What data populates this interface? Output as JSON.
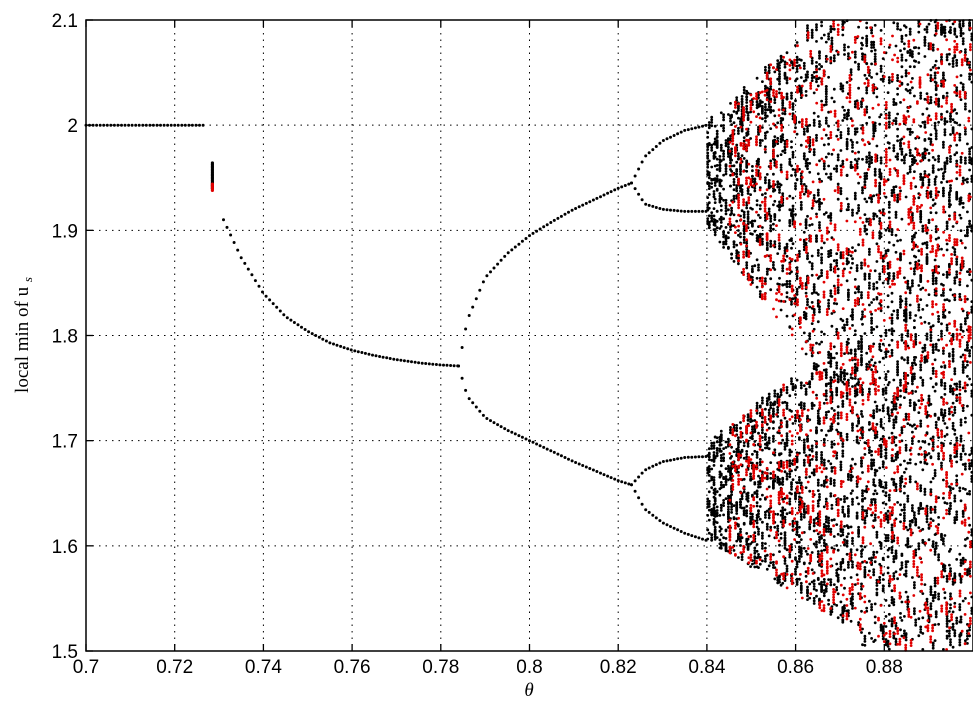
{
  "chart_data": {
    "type": "scatter",
    "title": "",
    "xlabel": "θ",
    "ylabel": "local min of u",
    "ylabel_subscript": "s",
    "xlim": [
      0.7,
      0.9
    ],
    "ylim": [
      1.5,
      2.1
    ],
    "x_ticks": [
      "0.7",
      "0.72",
      "0.74",
      "0.76",
      "0.78",
      "0.8",
      "0.82",
      "0.84",
      "0.86",
      "0.88"
    ],
    "y_ticks": [
      "1.5",
      "1.6",
      "1.7",
      "1.8",
      "1.9",
      "2",
      "2.1"
    ],
    "grid": true,
    "colors": {
      "primary": "#000000",
      "secondary": "#e00000"
    },
    "series": [
      {
        "color": "#000000",
        "segments": [
          {
            "kind": "line",
            "from": [
              0.7,
              2.0
            ],
            "to": [
              0.727,
              2.0
            ]
          },
          {
            "kind": "vertical",
            "x": 0.7285,
            "y_from": 1.94,
            "y_to": 1.965
          },
          {
            "kind": "curve",
            "points": [
              [
                0.731,
                1.91
              ],
              [
                0.735,
                1.874
              ],
              [
                0.74,
                1.84
              ],
              [
                0.745,
                1.818
              ],
              [
                0.75,
                1.804
              ],
              [
                0.755,
                1.793
              ],
              [
                0.76,
                1.786
              ],
              [
                0.765,
                1.781
              ],
              [
                0.77,
                1.777
              ],
              [
                0.775,
                1.774
              ],
              [
                0.78,
                1.772
              ],
              [
                0.784,
                1.771
              ]
            ]
          },
          {
            "kind": "curve",
            "points": [
              [
                0.784,
                1.771
              ],
              [
                0.786,
                1.815
              ],
              [
                0.79,
                1.855
              ],
              [
                0.795,
                1.878
              ],
              [
                0.8,
                1.895
              ],
              [
                0.805,
                1.908
              ],
              [
                0.81,
                1.92
              ],
              [
                0.815,
                1.93
              ],
              [
                0.82,
                1.94
              ],
              [
                0.823,
                1.945
              ]
            ]
          },
          {
            "kind": "curve",
            "points": [
              [
                0.784,
                1.771
              ],
              [
                0.786,
                1.742
              ],
              [
                0.79,
                1.722
              ],
              [
                0.795,
                1.71
              ],
              [
                0.8,
                1.7
              ],
              [
                0.805,
                1.69
              ],
              [
                0.81,
                1.68
              ],
              [
                0.815,
                1.671
              ],
              [
                0.82,
                1.662
              ],
              [
                0.823,
                1.658
              ]
            ]
          },
          {
            "kind": "curve",
            "points": [
              [
                0.823,
                1.945
              ],
              [
                0.826,
                1.97
              ],
              [
                0.83,
                1.985
              ],
              [
                0.835,
                1.995
              ],
              [
                0.84,
                2.0
              ]
            ]
          },
          {
            "kind": "curve",
            "points": [
              [
                0.823,
                1.945
              ],
              [
                0.826,
                1.925
              ],
              [
                0.83,
                1.92
              ],
              [
                0.835,
                1.918
              ],
              [
                0.84,
                1.918
              ]
            ]
          },
          {
            "kind": "curve",
            "points": [
              [
                0.823,
                1.658
              ],
              [
                0.826,
                1.672
              ],
              [
                0.83,
                1.68
              ],
              [
                0.835,
                1.684
              ],
              [
                0.84,
                1.685
              ]
            ]
          },
          {
            "kind": "curve",
            "points": [
              [
                0.823,
                1.658
              ],
              [
                0.826,
                1.635
              ],
              [
                0.83,
                1.622
              ],
              [
                0.835,
                1.612
              ],
              [
                0.84,
                1.605
              ]
            ]
          },
          {
            "kind": "chaotic",
            "x_from": 0.84,
            "x_to": 0.9
          }
        ]
      },
      {
        "color": "#e00000",
        "segments": [
          {
            "kind": "vertical",
            "x": 0.7285,
            "y_from": 1.938,
            "y_to": 1.945
          },
          {
            "kind": "chaotic",
            "x_from": 0.845,
            "x_to": 0.9
          }
        ]
      }
    ]
  }
}
